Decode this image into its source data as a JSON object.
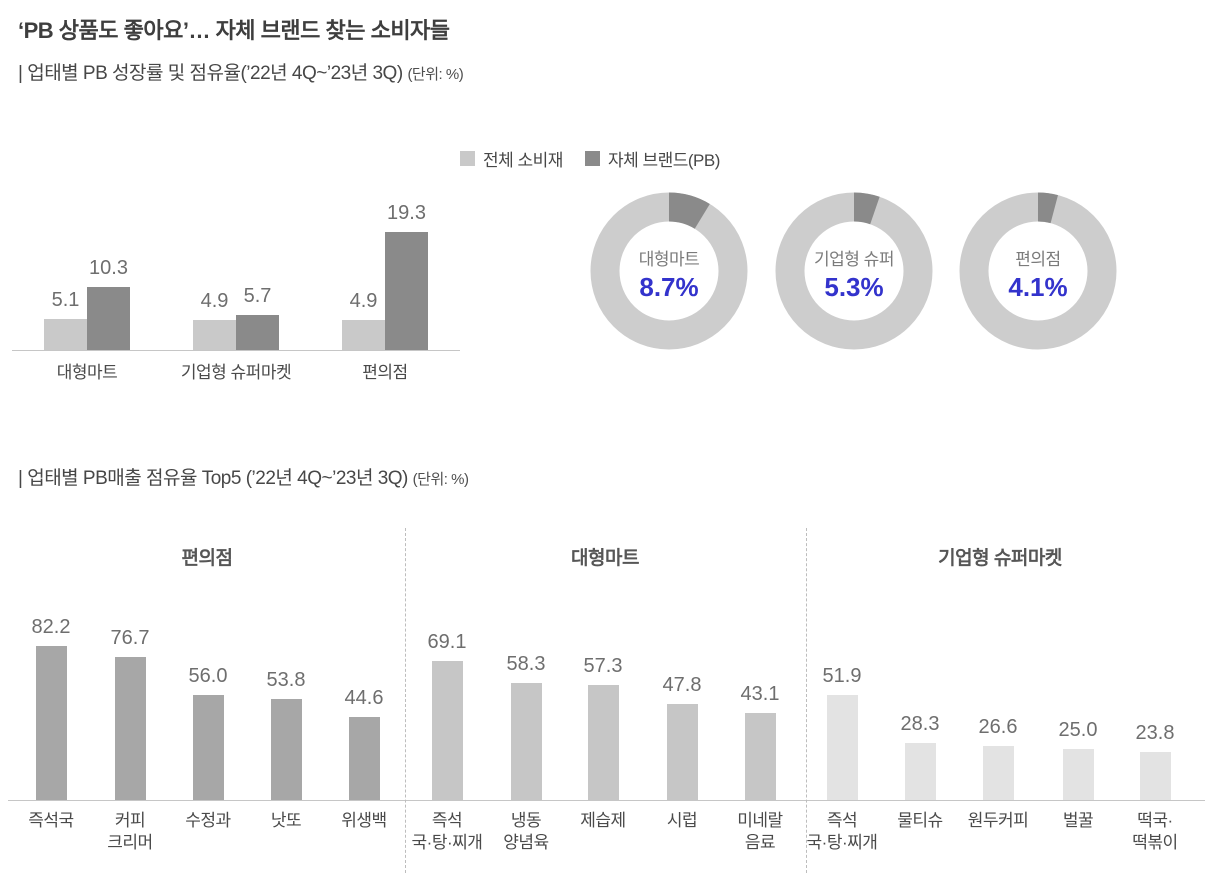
{
  "header": {
    "title": "‘PB 상품도 좋아요’… 자체 브랜드 찾는 소비자들",
    "section1_title": "| 업태별 PB 성장률 및 점유율(’22년 4Q~’23년 3Q)",
    "section1_unit": "(단위: %)",
    "section2_title": "| 업태별 PB매출 점유율 Top5 (’22년 4Q~’23년 3Q)",
    "section2_unit": "(단위: %)"
  },
  "colors": {
    "total_consumer_goods": "#c9c9c9",
    "private_brand": "#8a8a8a",
    "donut_ring": "#cdcdcd",
    "donut_segment": "#8a8a8a",
    "panel1_bars": "#a7a7a7",
    "panel2_bars": "#c6c6c6",
    "panel3_bars": "#e3e3e3",
    "pct_blue": "#3333cc"
  },
  "legend": [
    {
      "label": "전체 소비재",
      "color": "#c9c9c9"
    },
    {
      "label": "자체 브랜드(PB)",
      "color": "#8a8a8a"
    }
  ],
  "chart_data": [
    {
      "type": "bar",
      "title": "업태별 PB 성장률",
      "unit": "%",
      "categories": [
        "대형마트",
        "기업형 슈퍼마켓",
        "편의점"
      ],
      "series": [
        {
          "name": "전체 소비재",
          "color": "#c9c9c9",
          "values": [
            "5.1",
            "4.9",
            "4.9"
          ]
        },
        {
          "name": "자체 브랜드(PB)",
          "color": "#8a8a8a",
          "values": [
            "10.3",
            "5.7",
            "19.3"
          ]
        }
      ],
      "legend_position": "top",
      "grid": false
    },
    {
      "type": "pie",
      "title": "업태별 PB 점유율 도넛",
      "unit": "%",
      "items": [
        {
          "label": "대형마트",
          "value": "8.7%"
        },
        {
          "label": "기업형 슈퍼",
          "value": "5.3%"
        },
        {
          "label": "편의점",
          "value": "4.1%"
        }
      ]
    },
    {
      "type": "bar",
      "title": "업태별 PB매출 점유율 Top5",
      "unit": "%",
      "panels": [
        {
          "title": "편의점",
          "bar_color": "#a7a7a7",
          "categories": [
            "즉석국",
            "커피\n크리머",
            "수정과",
            "낫또",
            "위생백"
          ],
          "values": [
            "82.2",
            "76.7",
            "56.0",
            "53.8",
            "44.6"
          ]
        },
        {
          "title": "대형마트",
          "bar_color": "#c6c6c6",
          "categories": [
            "즉석\n국·탕·찌개",
            "냉동\n양념육",
            "제습제",
            "시럽",
            "미네랄\n음료"
          ],
          "values": [
            "69.1",
            "58.3",
            "57.3",
            "47.8",
            "43.1"
          ]
        },
        {
          "title": "기업형 슈퍼마켓",
          "bar_color": "#e3e3e3",
          "categories": [
            "즉석\n국·탕·찌개",
            "물티슈",
            "원두커피",
            "벌꿀",
            "떡국·\n떡볶이"
          ],
          "values": [
            "51.9",
            "28.3",
            "26.6",
            "25.0",
            "23.8"
          ]
        }
      ]
    }
  ]
}
